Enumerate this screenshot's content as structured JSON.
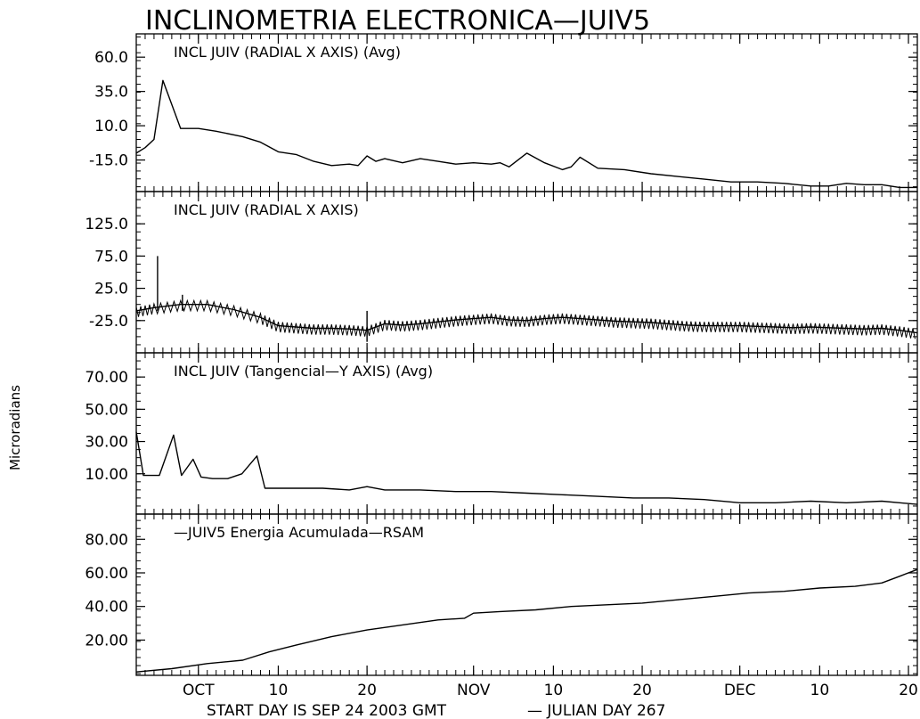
{
  "figure": {
    "title": "INCLINOMETRIA ELECTRONICA—JUIV5",
    "ylabel": "Microradians",
    "footer_left": "START DAY IS SEP 24 2003 GMT",
    "footer_right": "— JULIAN DAY 267",
    "x_tick_labels": [
      {
        "label": "OCT",
        "day": 7
      },
      {
        "label": "10",
        "day": 16
      },
      {
        "label": "20",
        "day": 26
      },
      {
        "label": "NOV",
        "day": 38
      },
      {
        "label": "10",
        "day": 47
      },
      {
        "label": "20",
        "day": 57
      },
      {
        "label": "DEC",
        "day": 68
      },
      {
        "label": "10",
        "day": 77
      },
      {
        "label": "20",
        "day": 87
      }
    ],
    "x_range_days_since_start": [
      0,
      88
    ]
  },
  "colors": {
    "background": "#ffffff",
    "line": "#000000"
  },
  "chart_data": [
    {
      "type": "line",
      "title": "INCL  JUIV (RADIAL X AXIS) (Avg)",
      "ylim": [
        -38,
        77
      ],
      "yticks": [
        {
          "v": 60,
          "label": "60.0"
        },
        {
          "v": 35,
          "label": "35.0"
        },
        {
          "v": 10,
          "label": "10.0"
        },
        {
          "v": -15,
          "label": "-15.0"
        }
      ],
      "x": [
        0,
        1,
        2,
        3,
        5,
        7,
        9,
        12,
        14,
        16,
        18,
        20,
        22,
        24,
        25,
        26,
        27,
        28,
        30,
        32,
        34,
        36,
        38,
        40,
        41,
        42,
        44,
        46,
        48,
        49,
        50,
        52,
        55,
        58,
        61,
        64,
        67,
        70,
        73,
        76,
        78,
        80,
        82,
        84,
        86,
        88
      ],
      "y": [
        -10,
        -6,
        0,
        43,
        8,
        8,
        6,
        2,
        -2,
        -9,
        -11,
        -16,
        -19,
        -18,
        -19,
        -12,
        -16,
        -14,
        -17,
        -14,
        -16,
        -18,
        -17,
        -18,
        -17,
        -20,
        -10,
        -17,
        -22,
        -20,
        -13,
        -21,
        -22,
        -25,
        -27,
        -29,
        -31,
        -31,
        -32,
        -34,
        -34,
        -32,
        -33,
        -33,
        -35,
        -35
      ]
    },
    {
      "type": "line",
      "title": "INCL JUIV (RADIAL X AXIS)",
      "ylim": [
        -75,
        175
      ],
      "yticks": [
        {
          "v": 125,
          "label": "125.0"
        },
        {
          "v": 75,
          "label": "75.0"
        },
        {
          "v": 25,
          "label": "25.0"
        },
        {
          "v": -25,
          "label": "-25.0"
        }
      ],
      "spikes": [
        {
          "x": 2.4,
          "y": 75
        },
        {
          "x": 5.2,
          "y": 15
        },
        {
          "x": 26.0,
          "y": -58
        }
      ],
      "x": [
        0,
        2,
        5,
        8,
        11,
        14,
        16,
        18,
        20,
        22,
        24,
        26,
        28,
        30,
        32,
        34,
        36,
        38,
        40,
        42,
        44,
        46,
        48,
        50,
        52,
        54,
        56,
        58,
        60,
        62,
        64,
        66,
        68,
        70,
        72,
        74,
        76,
        78,
        80,
        82,
        84,
        86,
        88
      ],
      "y": [
        -10,
        -5,
        0,
        0,
        -8,
        -20,
        -33,
        -35,
        -37,
        -37,
        -38,
        -40,
        -30,
        -32,
        -30,
        -27,
        -24,
        -22,
        -20,
        -24,
        -25,
        -22,
        -20,
        -22,
        -24,
        -26,
        -27,
        -28,
        -30,
        -32,
        -33,
        -33,
        -33,
        -34,
        -35,
        -36,
        -35,
        -36,
        -37,
        -38,
        -37,
        -40,
        -44
      ]
    },
    {
      "type": "line",
      "title": "INCL JUIV (Tangencial—Y AXIS) (Avg)",
      "ylim": [
        -15,
        85
      ],
      "yticks": [
        {
          "v": 70,
          "label": "70.00"
        },
        {
          "v": 50,
          "label": "50.00"
        },
        {
          "v": 30,
          "label": "30.00"
        },
        {
          "v": 10,
          "label": "10.00"
        }
      ],
      "x": [
        0,
        0.8,
        2.6,
        4.2,
        5.1,
        6.4,
        7.3,
        8.6,
        10.3,
        11.9,
        13.6,
        14.5,
        15,
        18,
        21,
        24,
        26,
        28,
        32,
        36,
        40,
        44,
        48,
        52,
        56,
        60,
        64,
        68,
        72,
        76,
        80,
        84,
        86,
        88
      ],
      "y": [
        36,
        9,
        9,
        34,
        9,
        19,
        8,
        7,
        7,
        10,
        21,
        1,
        1,
        1,
        1,
        0,
        2,
        0,
        0,
        -1,
        -1,
        -2,
        -3,
        -4,
        -5,
        -5,
        -6,
        -8,
        -8,
        -7,
        -8,
        -7,
        -8,
        -9
      ]
    },
    {
      "type": "line",
      "title": "—JUIV5 Energia Acumulada—RSAM",
      "ylim": [
        -1,
        95
      ],
      "yticks": [
        {
          "v": 80,
          "label": "80.00"
        },
        {
          "v": 60,
          "label": "60.00"
        },
        {
          "v": 40,
          "label": "40.00"
        },
        {
          "v": 20,
          "label": "20.00"
        }
      ],
      "x": [
        0,
        4,
        8,
        12,
        15,
        18,
        22,
        26,
        30,
        34,
        37,
        38,
        41,
        45,
        49,
        53,
        57,
        61,
        65,
        69,
        73,
        77,
        81,
        84,
        86,
        88
      ],
      "y": [
        1,
        3,
        6,
        8,
        13,
        17,
        22,
        26,
        29,
        32,
        33,
        36,
        37,
        38,
        40,
        41,
        42,
        44,
        46,
        48,
        49,
        51,
        52,
        54,
        58,
        62
      ]
    }
  ]
}
